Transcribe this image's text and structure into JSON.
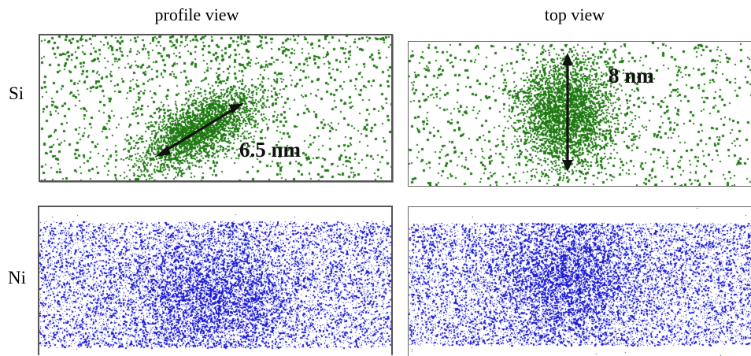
{
  "columns": {
    "profile": "profile view",
    "top": "top view"
  },
  "rows": {
    "si": "Si",
    "ni": "Ni"
  },
  "annotations": {
    "si_profile": "6.5 nm",
    "si_top": "8 nm"
  },
  "colors": {
    "si_dots": "#1f7a12",
    "ni_dots": "#1a1ad6",
    "arrow": "#111111",
    "frame": "#555555"
  }
}
